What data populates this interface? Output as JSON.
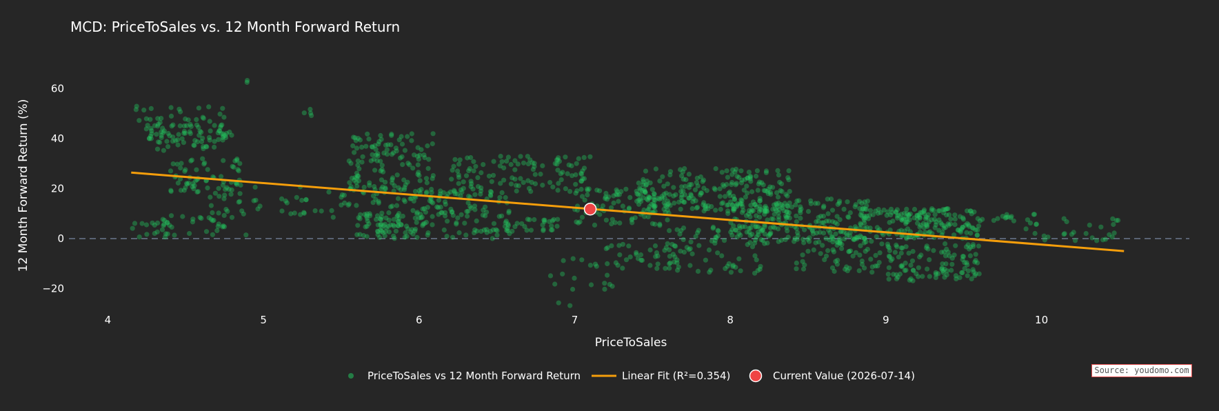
{
  "chart_data": {
    "type": "scatter",
    "title": "MCD: PriceToSales vs. 12 Month Forward Return",
    "xlabel": "PriceToSales",
    "ylabel": "12 Month Forward Return (%)",
    "xlim": [
      3.75,
      10.95
    ],
    "ylim": [
      -32,
      72
    ],
    "xticks": [
      4,
      5,
      6,
      7,
      8,
      9,
      10
    ],
    "yticks": [
      -20,
      0,
      20,
      40,
      60
    ],
    "ytick_labels": [
      "−20",
      "0",
      "20",
      "40",
      "60"
    ],
    "zero_line": 0,
    "grid": false,
    "series": [
      {
        "name": "PriceToSales vs 12 Month Forward Return",
        "kind": "markers",
        "color": "#22c55e",
        "clusters": [
          {
            "x": [
              4.18,
              4.75
            ],
            "y": [
              35,
              53
            ],
            "count": 70
          },
          {
            "x": [
              4.3,
              4.8
            ],
            "y": [
              38,
              46
            ],
            "count": 40
          },
          {
            "x": [
              4.4,
              4.85
            ],
            "y": [
              18,
              32
            ],
            "count": 60
          },
          {
            "x": [
              4.15,
              4.4
            ],
            "y": [
              0,
              7
            ],
            "count": 18
          },
          {
            "x": [
              4.35,
              4.95
            ],
            "y": [
              1,
              10
            ],
            "count": 28
          },
          {
            "x": [
              4.6,
              5.0
            ],
            "y": [
              8,
              22
            ],
            "count": 25
          },
          {
            "x": [
              5.1,
              5.6
            ],
            "y": [
              8,
              22
            ],
            "count": 28
          },
          {
            "x": [
              5.55,
              6.1
            ],
            "y": [
              18,
              42
            ],
            "count": 130
          },
          {
            "x": [
              5.6,
              6.0
            ],
            "y": [
              0,
              10
            ],
            "count": 70
          },
          {
            "x": [
              5.7,
              6.2
            ],
            "y": [
              5,
              20
            ],
            "count": 50
          },
          {
            "x": [
              6.0,
              6.6
            ],
            "y": [
              0,
              20
            ],
            "count": 90
          },
          {
            "x": [
              6.2,
              7.1
            ],
            "y": [
              18,
              33
            ],
            "count": 110
          },
          {
            "x": [
              6.4,
              6.9
            ],
            "y": [
              3,
              8
            ],
            "count": 30
          },
          {
            "x": [
              6.8,
              7.3
            ],
            "y": [
              -22,
              -8
            ],
            "count": 18
          },
          {
            "x": [
              7.0,
              7.6
            ],
            "y": [
              5,
              20
            ],
            "count": 90
          },
          {
            "x": [
              7.2,
              7.7
            ],
            "y": [
              -12,
              -2
            ],
            "count": 35
          },
          {
            "x": [
              7.4,
              8.4
            ],
            "y": [
              10,
              28
            ],
            "count": 220
          },
          {
            "x": [
              7.6,
              8.2
            ],
            "y": [
              -14,
              5
            ],
            "count": 70
          },
          {
            "x": [
              8.0,
              8.9
            ],
            "y": [
              -2,
              16
            ],
            "count": 230
          },
          {
            "x": [
              8.4,
              9.0
            ],
            "y": [
              -14,
              0
            ],
            "count": 60
          },
          {
            "x": [
              8.8,
              9.6
            ],
            "y": [
              0,
              12
            ],
            "count": 180
          },
          {
            "x": [
              9.0,
              9.6
            ],
            "y": [
              -17,
              -2
            ],
            "count": 110
          },
          {
            "x": [
              9.6,
              10.0
            ],
            "y": [
              7,
              10
            ],
            "count": 14
          },
          {
            "x": [
              9.9,
              10.5
            ],
            "y": [
              -1,
              8
            ],
            "count": 30
          },
          {
            "x": [
              5.25,
              5.35
            ],
            "y": [
              48,
              52
            ],
            "count": 4
          },
          {
            "x": [
              4.88,
              4.92
            ],
            "y": [
              62,
              64
            ],
            "count": 2
          },
          {
            "x": [
              6.85,
              6.98
            ],
            "y": [
              -27,
              -24
            ],
            "count": 2
          }
        ]
      },
      {
        "name": "Linear Fit (R²=0.354)",
        "kind": "line",
        "color": "#f59e0b",
        "x": [
          4.15,
          10.53
        ],
        "y": [
          26.4,
          -5.0
        ]
      },
      {
        "name": "Current Value (2026-07-14)",
        "kind": "marker",
        "color": "#ef4444",
        "x": [
          7.1
        ],
        "y": [
          11.8
        ]
      }
    ],
    "legend_position": "bottom-center",
    "source": "Source: youdomo.com"
  }
}
